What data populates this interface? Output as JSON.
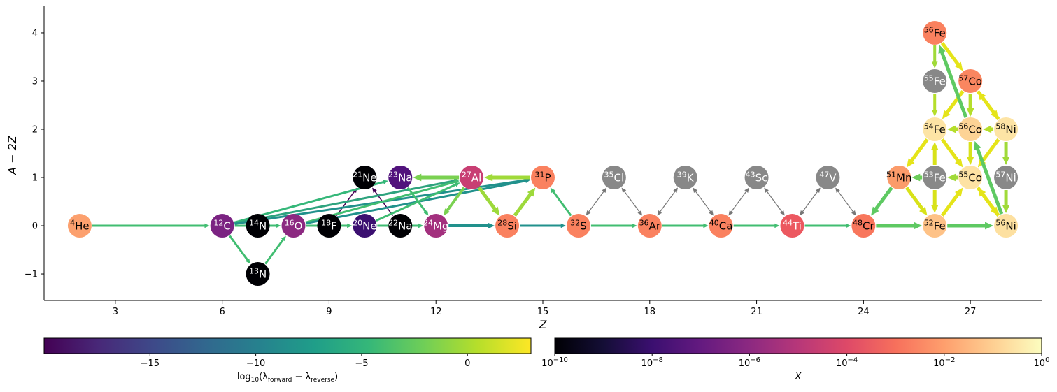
{
  "chart_data": {
    "type": "network",
    "xlabel": "Z",
    "ylabel": "A − 2Z",
    "xlim": [
      1,
      29
    ],
    "ylim": [
      -1.55,
      4.55
    ],
    "x_ticks": [
      {
        "value": 3,
        "label": "3"
      },
      {
        "value": 6,
        "label": "6"
      },
      {
        "value": 9,
        "label": "9"
      },
      {
        "value": 12,
        "label": "12"
      },
      {
        "value": 15,
        "label": "15"
      },
      {
        "value": 18,
        "label": "18"
      },
      {
        "value": 21,
        "label": "21"
      },
      {
        "value": 24,
        "label": "24"
      },
      {
        "value": 27,
        "label": "27"
      }
    ],
    "y_ticks": [
      {
        "value": -1,
        "label": "−1"
      },
      {
        "value": 0,
        "label": "0"
      },
      {
        "value": 1,
        "label": "1"
      },
      {
        "value": 2,
        "label": "2"
      },
      {
        "value": 3,
        "label": "3"
      },
      {
        "value": 4,
        "label": "4"
      }
    ],
    "nodes": [
      {
        "mass": "4",
        "symbol": "He",
        "z": 2,
        "n": 0,
        "color": "#fca06e",
        "text_color": "#000000"
      },
      {
        "mass": "12",
        "symbol": "C",
        "z": 6,
        "n": 0,
        "color": "#7b2382",
        "text_color": "#ffffff"
      },
      {
        "mass": "13",
        "symbol": "N",
        "z": 7,
        "n": -1,
        "color": "#000004",
        "text_color": "#ffffff"
      },
      {
        "mass": "14",
        "symbol": "N",
        "z": 7,
        "n": 0,
        "color": "#000004",
        "text_color": "#ffffff"
      },
      {
        "mass": "16",
        "symbol": "O",
        "z": 8,
        "n": 0,
        "color": "#8c2981",
        "text_color": "#ffffff"
      },
      {
        "mass": "18",
        "symbol": "F",
        "z": 9,
        "n": 0,
        "color": "#000004",
        "text_color": "#ffffff"
      },
      {
        "mass": "20",
        "symbol": "Ne",
        "z": 10,
        "n": 0,
        "color": "#3b0f70",
        "text_color": "#ffffff"
      },
      {
        "mass": "21",
        "symbol": "Ne",
        "z": 10,
        "n": 1,
        "color": "#000004",
        "text_color": "#ffffff"
      },
      {
        "mass": "22",
        "symbol": "Na",
        "z": 11,
        "n": 0,
        "color": "#000004",
        "text_color": "#ffffff"
      },
      {
        "mass": "23",
        "symbol": "Na",
        "z": 11,
        "n": 1,
        "color": "#51127c",
        "text_color": "#ffffff"
      },
      {
        "mass": "24",
        "symbol": "Mg",
        "z": 12,
        "n": 0,
        "color": "#a3307e",
        "text_color": "#ffffff"
      },
      {
        "mass": "27",
        "symbol": "Al",
        "z": 13,
        "n": 1,
        "color": "#c83e73",
        "text_color": "#ffffff"
      },
      {
        "mass": "28",
        "symbol": "Si",
        "z": 14,
        "n": 0,
        "color": "#fa815f",
        "text_color": "#000000"
      },
      {
        "mass": "31",
        "symbol": "P",
        "z": 15,
        "n": 1,
        "color": "#fa815f",
        "text_color": "#000000"
      },
      {
        "mass": "32",
        "symbol": "S",
        "z": 16,
        "n": 0,
        "color": "#fa815f",
        "text_color": "#000000"
      },
      {
        "mass": "35",
        "symbol": "Cl",
        "z": 17,
        "n": 1,
        "color": "#888888",
        "text_color": "#ffffff"
      },
      {
        "mass": "36",
        "symbol": "Ar",
        "z": 18,
        "n": 0,
        "color": "#fa815f",
        "text_color": "#000000"
      },
      {
        "mass": "39",
        "symbol": "K",
        "z": 19,
        "n": 1,
        "color": "#888888",
        "text_color": "#ffffff"
      },
      {
        "mass": "40",
        "symbol": "Ca",
        "z": 20,
        "n": 0,
        "color": "#fa815f",
        "text_color": "#000000"
      },
      {
        "mass": "43",
        "symbol": "Sc",
        "z": 21,
        "n": 1,
        "color": "#888888",
        "text_color": "#ffffff"
      },
      {
        "mass": "44",
        "symbol": "Ti",
        "z": 22,
        "n": 0,
        "color": "#ec5860",
        "text_color": "#ffffff"
      },
      {
        "mass": "47",
        "symbol": "V",
        "z": 23,
        "n": 1,
        "color": "#888888",
        "text_color": "#ffffff"
      },
      {
        "mass": "48",
        "symbol": "Cr",
        "z": 24,
        "n": 0,
        "color": "#f8765c",
        "text_color": "#000000"
      },
      {
        "mass": "51",
        "symbol": "Mn",
        "z": 25,
        "n": 1,
        "color": "#fb9b6a",
        "text_color": "#000000"
      },
      {
        "mass": "52",
        "symbol": "Fe",
        "z": 26,
        "n": 0,
        "color": "#fec287",
        "text_color": "#000000"
      },
      {
        "mass": "53",
        "symbol": "Fe",
        "z": 26,
        "n": 1,
        "color": "#888888",
        "text_color": "#ffffff"
      },
      {
        "mass": "54",
        "symbol": "Fe",
        "z": 26,
        "n": 2,
        "color": "#fde4a5",
        "text_color": "#000000"
      },
      {
        "mass": "55",
        "symbol": "Fe",
        "z": 26,
        "n": 3,
        "color": "#888888",
        "text_color": "#ffffff"
      },
      {
        "mass": "56",
        "symbol": "Fe",
        "z": 26,
        "n": 4,
        "color": "#fa815f",
        "text_color": "#000000"
      },
      {
        "mass": "55",
        "symbol": "Co",
        "z": 27,
        "n": 1,
        "color": "#fde2a3",
        "text_color": "#000000"
      },
      {
        "mass": "56",
        "symbol": "Co",
        "z": 27,
        "n": 2,
        "color": "#fdd395",
        "text_color": "#000000"
      },
      {
        "mass": "57",
        "symbol": "Co",
        "z": 27,
        "n": 3,
        "color": "#fa8660",
        "text_color": "#000000"
      },
      {
        "mass": "56",
        "symbol": "Ni",
        "z": 28,
        "n": 0,
        "color": "#fde0a0",
        "text_color": "#000000"
      },
      {
        "mass": "57",
        "symbol": "Ni",
        "z": 28,
        "n": 1,
        "color": "#888888",
        "text_color": "#ffffff"
      },
      {
        "mass": "58",
        "symbol": "Ni",
        "z": 28,
        "n": 2,
        "color": "#fde4a5",
        "text_color": "#000000"
      }
    ],
    "edges": [
      {
        "from": [
          2,
          0
        ],
        "to": [
          6,
          0
        ],
        "color": "#41bd71",
        "width": 3
      },
      {
        "from": [
          6,
          0
        ],
        "to": [
          7,
          -1
        ],
        "color": "#41bd71",
        "width": 3
      },
      {
        "from": [
          7,
          -1
        ],
        "to": [
          8,
          0
        ],
        "color": "#41bd71",
        "width": 3
      },
      {
        "from": [
          6,
          0
        ],
        "to": [
          8,
          0
        ],
        "color": "#3fbc73",
        "width": 3
      },
      {
        "from": [
          8,
          0
        ],
        "to": [
          10,
          0
        ],
        "color": "#41bd71",
        "width": 3
      },
      {
        "from": [
          9,
          0
        ],
        "to": [
          10,
          1
        ],
        "color": "#440154",
        "width": 1.5
      },
      {
        "from": [
          11,
          0
        ],
        "to": [
          10,
          1
        ],
        "color": "#440154",
        "width": 1.5
      },
      {
        "from": [
          10,
          0
        ],
        "to": [
          12,
          0
        ],
        "color": "#3fbc73",
        "width": 3
      },
      {
        "from": [
          6,
          0
        ],
        "to": [
          11,
          1
        ],
        "color": "#35b779",
        "width": 3
      },
      {
        "from": [
          6,
          0
        ],
        "to": [
          13,
          1
        ],
        "color": "#2ea37e",
        "width": 3
      },
      {
        "from": [
          6,
          0
        ],
        "to": [
          15,
          1
        ],
        "color": "#21918c",
        "width": 3
      },
      {
        "from": [
          8,
          0
        ],
        "to": [
          13,
          1
        ],
        "color": "#41bd71",
        "width": 3
      },
      {
        "from": [
          8,
          0
        ],
        "to": [
          15,
          1
        ],
        "color": "#21918c",
        "width": 3
      },
      {
        "from": [
          10,
          0
        ],
        "to": [
          13,
          1
        ],
        "color": "#3fbc73",
        "width": 3
      },
      {
        "from": [
          13,
          1
        ],
        "to": [
          11,
          1
        ],
        "color": "#7ad151",
        "width": 5
      },
      {
        "from": [
          13,
          1
        ],
        "to": [
          12,
          0
        ],
        "color": "#7ad151",
        "width": 4
      },
      {
        "from": [
          11,
          1
        ],
        "to": [
          12,
          0
        ],
        "color": "#41bd71",
        "width": 3
      },
      {
        "from": [
          12,
          0
        ],
        "to": [
          14,
          0
        ],
        "color": "#21918c",
        "width": 4
      },
      {
        "from": [
          13,
          1
        ],
        "to": [
          14,
          0
        ],
        "color": "#9dd93b",
        "width": 5
      },
      {
        "from": [
          15,
          1
        ],
        "to": [
          13,
          1
        ],
        "color": "#a0da39",
        "width": 5
      },
      {
        "from": [
          14,
          0
        ],
        "to": [
          15,
          1
        ],
        "color": "#9dd93b",
        "width": 5
      },
      {
        "from": [
          14,
          0
        ],
        "to": [
          16,
          0
        ],
        "color": "#21918c",
        "width": 3
      },
      {
        "from": [
          16,
          0
        ],
        "to": [
          15,
          1
        ],
        "color": "#41bd71",
        "width": 3
      },
      {
        "from": [
          16,
          0
        ],
        "to": [
          18,
          0
        ],
        "color": "#41bd71",
        "width": 3
      },
      {
        "from": [
          18,
          0
        ],
        "to": [
          20,
          0
        ],
        "color": "#41bd71",
        "width": 3
      },
      {
        "from": [
          20,
          0
        ],
        "to": [
          22,
          0
        ],
        "color": "#41bd71",
        "width": 3
      },
      {
        "from": [
          22,
          0
        ],
        "to": [
          24,
          0
        ],
        "color": "#41bd71",
        "width": 3
      },
      {
        "from": [
          16,
          0
        ],
        "to": [
          17,
          1
        ],
        "color": "#777777",
        "width": 1.2,
        "both": true
      },
      {
        "from": [
          17,
          1
        ],
        "to": [
          18,
          0
        ],
        "color": "#777777",
        "width": 1.2,
        "both": true
      },
      {
        "from": [
          18,
          0
        ],
        "to": [
          19,
          1
        ],
        "color": "#777777",
        "width": 1.2,
        "both": true
      },
      {
        "from": [
          19,
          1
        ],
        "to": [
          20,
          0
        ],
        "color": "#777777",
        "width": 1.2,
        "both": true
      },
      {
        "from": [
          20,
          0
        ],
        "to": [
          21,
          1
        ],
        "color": "#777777",
        "width": 1.2,
        "both": true
      },
      {
        "from": [
          21,
          1
        ],
        "to": [
          22,
          0
        ],
        "color": "#777777",
        "width": 1.2,
        "both": true
      },
      {
        "from": [
          22,
          0
        ],
        "to": [
          23,
          1
        ],
        "color": "#777777",
        "width": 1.2,
        "both": true
      },
      {
        "from": [
          23,
          1
        ],
        "to": [
          24,
          0
        ],
        "color": "#777777",
        "width": 1.2,
        "both": true
      },
      {
        "from": [
          24,
          0
        ],
        "to": [
          26,
          0
        ],
        "color": "#5ec962",
        "width": 5
      },
      {
        "from": [
          25,
          1
        ],
        "to": [
          24,
          0
        ],
        "color": "#5ec962",
        "width": 5
      },
      {
        "from": [
          26,
          0
        ],
        "to": [
          28,
          0
        ],
        "color": "#5ec962",
        "width": 5
      },
      {
        "from": [
          25,
          1
        ],
        "to": [
          26,
          0
        ],
        "color": "#d8e219",
        "width": 5
      },
      {
        "from": [
          26,
          1
        ],
        "to": [
          25,
          1
        ],
        "color": "#6ccd5a",
        "width": 5
      },
      {
        "from": [
          26,
          2
        ],
        "to": [
          25,
          1
        ],
        "color": "#e5e419",
        "width": 5
      },
      {
        "from": [
          26,
          1
        ],
        "to": [
          26,
          0
        ],
        "color": "#d8e219",
        "width": 5
      },
      {
        "from": [
          26,
          0
        ],
        "to": [
          27,
          1
        ],
        "color": "#e5e419",
        "width": 5
      },
      {
        "from": [
          26,
          1
        ],
        "to": [
          26,
          2
        ],
        "color": "#d8e219",
        "width": 5
      },
      {
        "from": [
          26,
          2
        ],
        "to": [
          27,
          1
        ],
        "color": "#e5e419",
        "width": 5
      },
      {
        "from": [
          27,
          1
        ],
        "to": [
          26,
          1
        ],
        "color": "#a0da39",
        "width": 5
      },
      {
        "from": [
          27,
          1
        ],
        "to": [
          28,
          0
        ],
        "color": "#e5e419",
        "width": 5
      },
      {
        "from": [
          28,
          0
        ],
        "to": [
          27,
          1
        ],
        "color": "#e5e419",
        "width": 5
      },
      {
        "from": [
          28,
          1
        ],
        "to": [
          28,
          0
        ],
        "color": "#a0da39",
        "width": 5
      },
      {
        "from": [
          28,
          2
        ],
        "to": [
          28,
          1
        ],
        "color": "#a0da39",
        "width": 5
      },
      {
        "from": [
          28,
          2
        ],
        "to": [
          27,
          1
        ],
        "color": "#e5e419",
        "width": 5
      },
      {
        "from": [
          27,
          2
        ],
        "to": [
          27,
          1
        ],
        "color": "#d8e219",
        "width": 5
      },
      {
        "from": [
          28,
          2
        ],
        "to": [
          27,
          2
        ],
        "color": "#b5de2b",
        "width": 5
      },
      {
        "from": [
          27,
          2
        ],
        "to": [
          26,
          2
        ],
        "color": "#b5de2b",
        "width": 5
      },
      {
        "from": [
          28,
          0
        ],
        "to": [
          27,
          2
        ],
        "color": "#5ec962",
        "width": 5
      },
      {
        "from": [
          26,
          3
        ],
        "to": [
          26,
          2
        ],
        "color": "#b5de2b",
        "width": 4
      },
      {
        "from": [
          26,
          4
        ],
        "to": [
          26,
          3
        ],
        "color": "#a0da39",
        "width": 4
      },
      {
        "from": [
          27,
          3
        ],
        "to": [
          26,
          2
        ],
        "color": "#e5e419",
        "width": 5
      },
      {
        "from": [
          27,
          3
        ],
        "to": [
          27,
          2
        ],
        "color": "#b5de2b",
        "width": 5
      },
      {
        "from": [
          27,
          3
        ],
        "to": [
          28,
          2
        ],
        "color": "#e5e419",
        "width": 5
      },
      {
        "from": [
          28,
          2
        ],
        "to": [
          27,
          3
        ],
        "color": "#e5e419",
        "width": 5
      },
      {
        "from": [
          27,
          2
        ],
        "to": [
          26,
          4
        ],
        "color": "#5ec962",
        "width": 5
      },
      {
        "from": [
          26,
          4
        ],
        "to": [
          27,
          3
        ],
        "color": "#e5e419",
        "width": 5
      }
    ],
    "colorbars": [
      {
        "name": "rate",
        "cmap": "viridis",
        "stops": [
          "#440154",
          "#482878",
          "#3e4989",
          "#31688e",
          "#26828e",
          "#1f9e89",
          "#35b779",
          "#6ece58",
          "#b5de2b",
          "#fde725"
        ],
        "range": [
          -20,
          3
        ],
        "ticks": [
          {
            "value": -15,
            "label": "−15"
          },
          {
            "value": -10,
            "label": "−10"
          },
          {
            "value": -5,
            "label": "−5"
          },
          {
            "value": 0,
            "label": "0"
          }
        ],
        "label": "log₁₀(λ_forward − λ_reverse)"
      },
      {
        "name": "abundance",
        "cmap": "magma",
        "stops": [
          "#000004",
          "#140e36",
          "#3b0f70",
          "#641a80",
          "#8c2981",
          "#b73779",
          "#de4968",
          "#f7705c",
          "#fe9f6d",
          "#fecf92",
          "#fcfdbf"
        ],
        "range": [
          -10,
          0
        ],
        "log": true,
        "ticks": [
          {
            "value": -10,
            "base": "10",
            "exp": "−10"
          },
          {
            "value": -8,
            "base": "10",
            "exp": "−8"
          },
          {
            "value": -6,
            "base": "10",
            "exp": "−6"
          },
          {
            "value": -4,
            "base": "10",
            "exp": "−4"
          },
          {
            "value": -2,
            "base": "10",
            "exp": "−2"
          },
          {
            "value": 0,
            "base": "10",
            "exp": "0"
          }
        ],
        "label": "X"
      }
    ]
  }
}
